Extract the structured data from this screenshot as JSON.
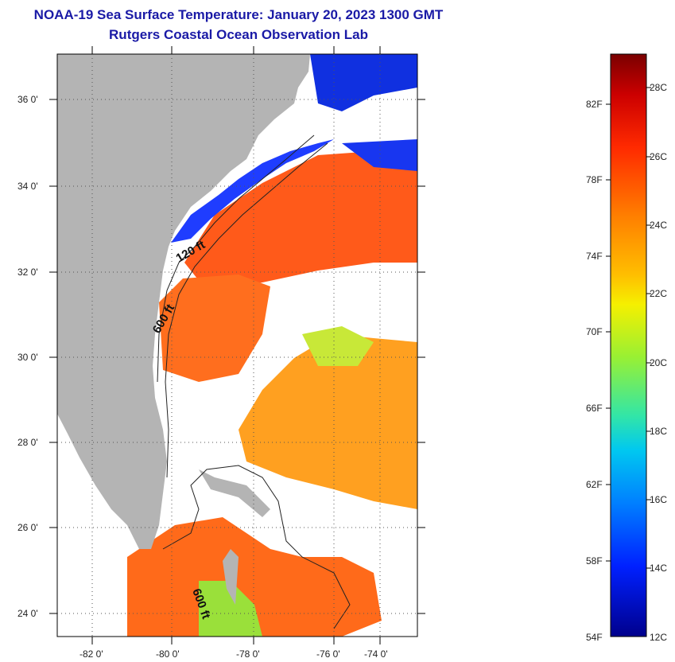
{
  "header": {
    "title": "NOAA-19 Sea Surface Temperature:  January 20, 2023 1300 GMT",
    "subtitle": "Rutgers Coastal Ocean Observation Lab"
  },
  "map": {
    "lat_labels": [
      "36 0'",
      "34 0'",
      "32 0'",
      "30 0'",
      "28 0'",
      "26 0'",
      "24 0'"
    ],
    "lon_labels": [
      "-82 0'",
      "-80 0'",
      "-78 0'",
      "-76 0'",
      "-74 0'"
    ],
    "contour_labels": [
      "120 ft",
      "600 ft",
      "600 ft"
    ],
    "land_color": "#b4b4b4",
    "cloud_color": "#ffffff"
  },
  "colorbar": {
    "fahrenheit_labels": [
      "82F",
      "78F",
      "74F",
      "70F",
      "66F",
      "62F",
      "58F",
      "54F"
    ],
    "celsius_labels": [
      "28C",
      "26C",
      "24C",
      "22C",
      "20C",
      "18C",
      "16C",
      "14C",
      "12C"
    ],
    "colors": [
      "#7a0000",
      "#cc0000",
      "#ff3300",
      "#ff8000",
      "#ffbf00",
      "#f2f200",
      "#99f033",
      "#33e6a6",
      "#00c8f0",
      "#0080ff",
      "#0020ff",
      "#00008c"
    ]
  }
}
